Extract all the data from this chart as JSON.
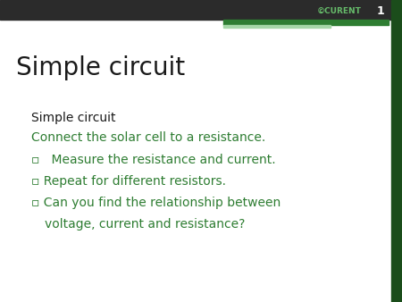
{
  "title": "Simple circuit",
  "subtitle": "Simple circuit",
  "line2": "Connect the solar cell to a resistance.",
  "bullet1": "Measure the resistance and current.",
  "bullet2": "Repeat for different resistors.",
  "bullet3_line1": "Can you find the relationship between",
  "bullet3_line2": "voltage, current and resistance?",
  "bg_color": "#ffffff",
  "title_color": "#1a1a1a",
  "subtitle_color": "#1a1a1a",
  "green_color": "#2e7d32",
  "header_color": "#2b2b2b",
  "green_bar_color": "#2e7d32",
  "light_green_color": "#a5d6a7",
  "right_border_color": "#1b4d1b",
  "page_num": "1",
  "logo_text": "©CURENT",
  "bullet_char": "▫"
}
